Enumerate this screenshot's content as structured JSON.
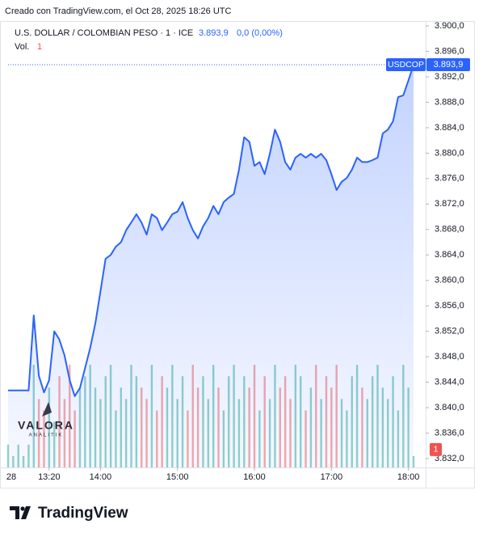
{
  "chart_data": {
    "type": "line",
    "title": "Creado con TradingView.com, el Oct 28, 2025 18:26 UTC",
    "symbol": "U.S. DOLLAR / COLOMBIAN PESO · 1 · ICE",
    "price_label": "3.893,9",
    "change_label": "0,0 (0,00%)",
    "day_label": "28",
    "watermark": {
      "title": "VALORA",
      "subtitle": "ANALITIK"
    },
    "footer": "TradingView",
    "x": [
      "12:48",
      "12:52",
      "12:56",
      "13:00",
      "13:04",
      "13:08",
      "13:12",
      "13:16",
      "13:20",
      "13:24",
      "13:28",
      "13:32",
      "13:36",
      "13:40",
      "13:44",
      "13:48",
      "13:52",
      "13:56",
      "14:00",
      "14:04",
      "14:08",
      "14:12",
      "14:16",
      "14:20",
      "14:24",
      "14:28",
      "14:32",
      "14:36",
      "14:40",
      "14:44",
      "14:48",
      "14:52",
      "14:56",
      "15:00",
      "15:04",
      "15:08",
      "15:12",
      "15:16",
      "15:20",
      "15:24",
      "15:28",
      "15:32",
      "15:36",
      "15:40",
      "15:44",
      "15:48",
      "15:52",
      "15:56",
      "16:00",
      "16:04",
      "16:08",
      "16:12",
      "16:16",
      "16:20",
      "16:24",
      "16:28",
      "16:32",
      "16:36",
      "16:40",
      "16:44",
      "16:48",
      "16:52",
      "16:56",
      "17:00",
      "17:04",
      "17:08",
      "17:12",
      "17:16",
      "17:20",
      "17:24",
      "17:28",
      "17:32",
      "17:36",
      "17:40",
      "17:44",
      "17:48",
      "17:52",
      "17:56",
      "18:00",
      "18:04"
    ],
    "series": [
      {
        "name": "USDCOP",
        "color": "#2962ff",
        "values": [
          3842.7,
          3842.7,
          3842.7,
          3842.7,
          3842.7,
          3854.5,
          3845.0,
          3842.4,
          3844.3,
          3852.0,
          3850.7,
          3848.2,
          3844.3,
          3841.8,
          3843.1,
          3846.2,
          3849.4,
          3853.2,
          3858.3,
          3863.4,
          3864.0,
          3865.3,
          3866.0,
          3867.9,
          3869.1,
          3870.4,
          3869.1,
          3867.2,
          3870.4,
          3869.8,
          3867.9,
          3869.1,
          3870.4,
          3870.8,
          3872.3,
          3869.8,
          3867.9,
          3866.6,
          3868.5,
          3869.8,
          3871.7,
          3870.4,
          3872.3,
          3873.0,
          3873.6,
          3877.4,
          3882.5,
          3881.8,
          3878.0,
          3878.6,
          3876.7,
          3879.9,
          3883.7,
          3881.8,
          3878.6,
          3877.4,
          3879.3,
          3879.9,
          3879.3,
          3879.9,
          3879.3,
          3879.9,
          3878.9,
          3876.7,
          3874.2,
          3875.5,
          3876.1,
          3877.4,
          3879.3,
          3878.6,
          3878.6,
          3878.9,
          3879.3,
          3883.1,
          3883.7,
          3885.0,
          3888.8,
          3889.1,
          3891.4,
          3893.9
        ]
      },
      {
        "name": "Vol.",
        "axis": "y2",
        "up_color": "#26a69a",
        "down_color": "#ef5350",
        "values": [
          2,
          1,
          2,
          1,
          2,
          9,
          6,
          5,
          7,
          4,
          8,
          6,
          9,
          5,
          7,
          8,
          9,
          7,
          6,
          8,
          9,
          5,
          7,
          6,
          9,
          8,
          7,
          6,
          9,
          5,
          8,
          7,
          9,
          6,
          8,
          5,
          9,
          7,
          8,
          6,
          9,
          7,
          5,
          8,
          9,
          6,
          8,
          7,
          9,
          5,
          8,
          6,
          9,
          7,
          8,
          6,
          9,
          8,
          5,
          7,
          9,
          6,
          8,
          7,
          9,
          6,
          5,
          8,
          9,
          7,
          6,
          8,
          9,
          7,
          6,
          8,
          5,
          9,
          7,
          1
        ]
      }
    ],
    "xlim": [
      "12:48",
      "18:04"
    ],
    "xticks": [
      "13:20",
      "14:00",
      "15:00",
      "16:00",
      "17:00",
      "18:00"
    ],
    "ylim": [
      3830.6,
      3902.8
    ],
    "yticks": [
      {
        "value": 3832,
        "label": "3.832,0"
      },
      {
        "value": 3836,
        "label": "3.836,0"
      },
      {
        "value": 3840,
        "label": "3.840,0"
      },
      {
        "value": 3844,
        "label": "3.844,0"
      },
      {
        "value": 3848,
        "label": "3.848,0"
      },
      {
        "value": 3852,
        "label": "3.852,0"
      },
      {
        "value": 3856,
        "label": "3.856,0"
      },
      {
        "value": 3860,
        "label": "3.860,0"
      },
      {
        "value": 3864,
        "label": "3.864,0"
      },
      {
        "value": 3868,
        "label": "3.868,0"
      },
      {
        "value": 3872,
        "label": "3.872,0"
      },
      {
        "value": 3876,
        "label": "3.876,0"
      },
      {
        "value": 3880,
        "label": "3.880,0"
      },
      {
        "value": 3884,
        "label": "3.884,0"
      },
      {
        "value": 3888,
        "label": "3.888,0"
      },
      {
        "value": 3892,
        "label": "3.892,0"
      },
      {
        "value": 3896,
        "label": "3.896,0"
      },
      {
        "value": 3900,
        "label": "3.900,0"
      }
    ],
    "y2lim": [
      0,
      10
    ]
  }
}
